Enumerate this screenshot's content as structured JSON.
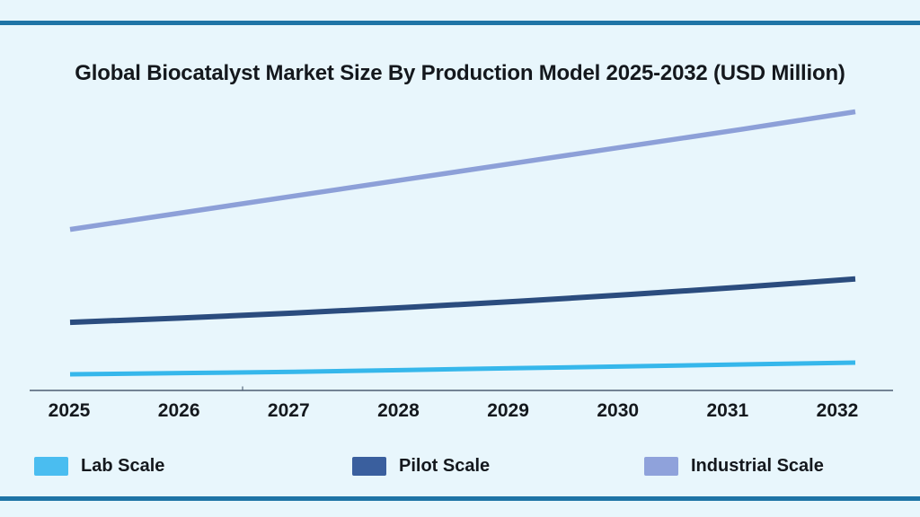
{
  "window": {
    "background_color": "#E8F6FC",
    "border_rule_color": "#1E74A6",
    "axis_color": "#4C5D72",
    "text_color": "#14181D"
  },
  "chart_data": {
    "type": "line",
    "title": "Global Biocatalyst Market Size By Production Model 2025-2032 (USD Million)",
    "units": "USD Million",
    "categories": [
      "2025",
      "2026",
      "2027",
      "2028",
      "2029",
      "2030",
      "2031",
      "2032"
    ],
    "series": [
      {
        "name": "Lab Scale",
        "color": "#36B7EB",
        "swatch_color": "#4ABDF0",
        "values": [
          26,
          28,
          30,
          33,
          36,
          39,
          42,
          45
        ]
      },
      {
        "name": "Pilot Scale",
        "color": "#2B4C7E",
        "swatch_color": "#3A5F9E",
        "values": [
          110,
          117,
          125,
          134,
          144,
          155,
          167,
          180
        ]
      },
      {
        "name": "Industrial Scale",
        "color": "#8DA0D8",
        "swatch_color": "#8FA2DB",
        "values": [
          260,
          287,
          314,
          341,
          368,
          395,
          422,
          450
        ]
      }
    ],
    "xlabel": "",
    "ylabel": "",
    "ylim": [
      0,
      500
    ],
    "y_axis_visible": false,
    "grid": false,
    "legend_position": "bottom"
  }
}
